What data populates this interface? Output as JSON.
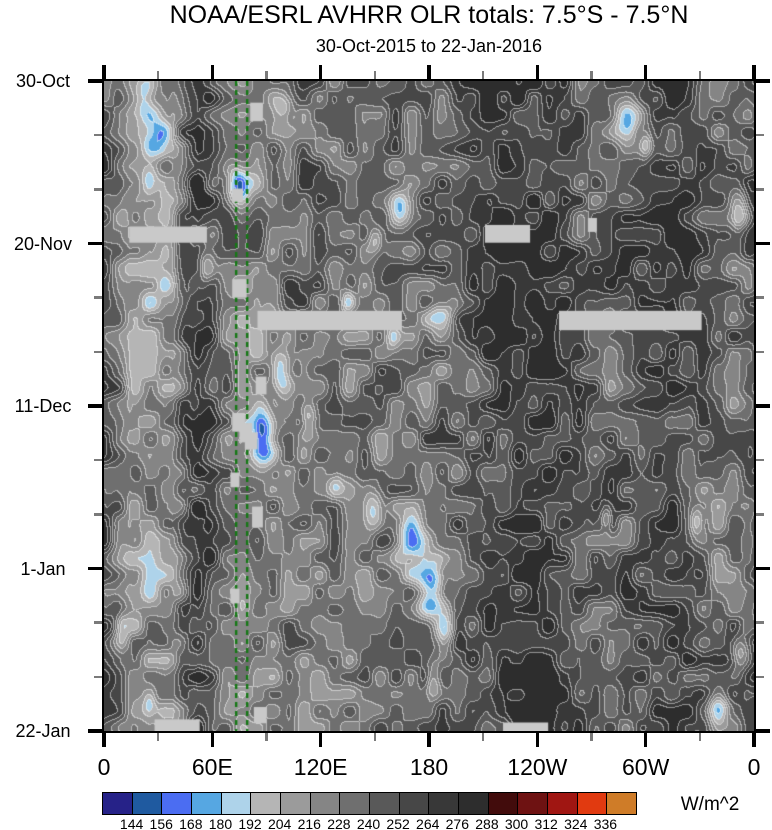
{
  "title": "NOAA/ESRL AVHRR OLR totals: 7.5°S - 7.5°N",
  "subtitle": "30-Oct-2015 to 22-Jan-2016",
  "chart_data": {
    "type": "heatmap",
    "title": "NOAA/ESRL AVHRR OLR totals: 7.5°S - 7.5°N",
    "subtitle": "30-Oct-2015 to 22-Jan-2016",
    "description": "Time-longitude (Hovmoller) filled-contour plot of outgoing longwave radiation averaged 7.5S-7.5N; time increases downward from 30-Oct-2015 to 22-Jan-2016; longitude spans 0E eastward around the globe back to 0.",
    "x_axis": {
      "range_deg": [
        0,
        360
      ],
      "major_ticks": [
        {
          "deg": 0,
          "label": "0"
        },
        {
          "deg": 60,
          "label": "60E"
        },
        {
          "deg": 120,
          "label": "120E"
        },
        {
          "deg": 180,
          "label": "180"
        },
        {
          "deg": 240,
          "label": "120W"
        },
        {
          "deg": 300,
          "label": "60W"
        },
        {
          "deg": 360,
          "label": "0"
        }
      ],
      "minor_step_deg": 30
    },
    "y_axis": {
      "range_days": [
        0,
        84
      ],
      "major_ticks": [
        {
          "day": 0,
          "label": "30-Oct"
        },
        {
          "day": 21,
          "label": "20-Nov"
        },
        {
          "day": 42,
          "label": "11-Dec"
        },
        {
          "day": 63,
          "label": "1-Jan"
        },
        {
          "day": 84,
          "label": "22-Jan"
        }
      ],
      "minor_step_days": 7
    },
    "colorbar": {
      "unit": "W/m^2",
      "levels": [
        144,
        156,
        168,
        180,
        192,
        204,
        216,
        228,
        240,
        252,
        264,
        276,
        288,
        300,
        312,
        324,
        336
      ],
      "colors": [
        "#262288",
        "#1f5aa0",
        "#4b6df2",
        "#56a7e2",
        "#aed3ea",
        "#b5b5b5",
        "#9b9b9b",
        "#858585",
        "#6f6f6f",
        "#595959",
        "#474747",
        "#383838",
        "#2d2d2d",
        "#420c0c",
        "#6e1212",
        "#a01612",
        "#e13a10",
        "#cf7c28"
      ]
    },
    "reference_lines": {
      "style": "dashed",
      "color": "#157815",
      "lons": [
        73.2,
        79.3
      ]
    },
    "missing_data": {
      "color": "#c9c9c9",
      "bars": [
        {
          "lon": [
            14,
            57
          ],
          "day": [
            18.8,
            20.9
          ]
        },
        {
          "lon": [
            211,
            236
          ],
          "day": [
            18.6,
            20.9
          ]
        },
        {
          "lon": [
            85,
            165
          ],
          "day": [
            29.7,
            32.2
          ]
        },
        {
          "lon": [
            252,
            331
          ],
          "day": [
            29.7,
            32.2
          ]
        },
        {
          "lon": [
            28,
            53
          ],
          "day": [
            82.5,
            84
          ]
        },
        {
          "lon": [
            221,
            246
          ],
          "day": [
            82.9,
            84
          ]
        },
        {
          "lon": [
            81,
            88
          ],
          "day": [
            2.8,
            5.2
          ]
        },
        {
          "lon": [
            71,
            77
          ],
          "day": [
            13.9,
            15.6
          ]
        },
        {
          "lon": [
            71,
            79
          ],
          "day": [
            25.6,
            28.0
          ]
        },
        {
          "lon": [
            84,
            90
          ],
          "day": [
            38.2,
            40.5
          ]
        },
        {
          "lon": [
            71,
            78
          ],
          "day": [
            42.9,
            45.3
          ]
        },
        {
          "lon": [
            75,
            82
          ],
          "day": [
            44.2,
            46.7
          ]
        },
        {
          "lon": [
            78,
            85
          ],
          "day": [
            45.4,
            47.6
          ]
        },
        {
          "lon": [
            70,
            75
          ],
          "day": [
            50.6,
            52.5
          ]
        },
        {
          "lon": [
            82,
            88
          ],
          "day": [
            55.0,
            57.7
          ]
        },
        {
          "lon": [
            70,
            75
          ],
          "day": [
            65.6,
            67.5
          ]
        },
        {
          "lon": [
            83,
            90
          ],
          "day": [
            80.9,
            83.0
          ]
        },
        {
          "lon": [
            268,
            273
          ],
          "day": [
            17.7,
            19.5
          ]
        }
      ]
    },
    "base_olr_profile": {
      "lons": [
        0,
        8,
        14,
        25,
        38,
        46,
        52,
        58,
        66,
        75,
        85,
        95,
        108,
        120,
        132,
        145,
        158,
        170,
        182,
        194,
        205,
        215,
        228,
        242,
        256,
        268,
        280,
        292,
        304,
        316,
        328,
        340,
        350,
        360
      ],
      "values": [
        256,
        236,
        216,
        213,
        221,
        258,
        274,
        264,
        240,
        229,
        227,
        233,
        241,
        237,
        235,
        234,
        237,
        239,
        241,
        247,
        257,
        269,
        275,
        277,
        270,
        250,
        246,
        252,
        262,
        268,
        256,
        238,
        242,
        256
      ]
    },
    "noise": {
      "octaves": [
        {
          "lon_scale": 8.5,
          "day_scale": 2.2,
          "amp": 50,
          "seed": 7
        },
        {
          "lon_scale": 26,
          "day_scale": 6.5,
          "amp": 28,
          "seed": 13
        }
      ],
      "value_clamp": [
        141,
        287
      ]
    },
    "convective_features": [
      {
        "lon": 22,
        "day": 2,
        "lon_r": 7,
        "day_r": 2.5,
        "drop": 48
      },
      {
        "lon": 28,
        "day": 7,
        "lon_r": 8,
        "day_r": 3,
        "drop": 52
      },
      {
        "lon": 100,
        "day": 3.5,
        "lon_r": 6,
        "day_r": 2.5,
        "drop": 55
      },
      {
        "lon": 290,
        "day": 5,
        "lon_r": 9,
        "day_r": 3.5,
        "drop": 70
      },
      {
        "lon": 74,
        "day": 13.5,
        "lon_r": 7,
        "day_r": 2.5,
        "drop": 72
      },
      {
        "lon": 25,
        "day": 13,
        "lon_r": 5,
        "day_r": 2,
        "drop": 42
      },
      {
        "lon": 164,
        "day": 16.5,
        "lon_r": 6,
        "day_r": 2.5,
        "drop": 55
      },
      {
        "lon": 352,
        "day": 17,
        "lon_r": 5,
        "day_r": 3,
        "drop": 50
      },
      {
        "lon": 57,
        "day": 24,
        "lon_r": 4.5,
        "day_r": 2.5,
        "drop": 45
      },
      {
        "lon": 150,
        "day": 20.5,
        "lon_r": 4,
        "day_r": 1.8,
        "drop": 40
      },
      {
        "lon": 187,
        "day": 30,
        "lon_r": 8,
        "day_r": 2.5,
        "drop": 58
      },
      {
        "lon": 160,
        "day": 33,
        "lon_r": 5,
        "day_r": 2,
        "drop": 45
      },
      {
        "lon": 97,
        "day": 37.5,
        "lon_r": 6,
        "day_r": 3,
        "drop": 60
      },
      {
        "lon": 113,
        "day": 43.5,
        "lon_r": 4.5,
        "day_r": 2.5,
        "drop": 50
      },
      {
        "lon": 88,
        "day": 46,
        "lon_r": 7,
        "day_r": 4,
        "drop": 78
      },
      {
        "lon": 128,
        "day": 52,
        "lon_r": 5,
        "day_r": 2.5,
        "drop": 48
      },
      {
        "lon": 150,
        "day": 55.5,
        "lon_r": 6,
        "day_r": 3,
        "drop": 55
      },
      {
        "lon": 170,
        "day": 59.5,
        "lon_r": 8,
        "day_r": 4,
        "drop": 82
      },
      {
        "lon": 181,
        "day": 65.5,
        "lon_r": 8,
        "day_r": 4,
        "drop": 85
      },
      {
        "lon": 189,
        "day": 71,
        "lon_r": 5.5,
        "day_r": 3,
        "drop": 55
      },
      {
        "lon": 182,
        "day": 77.5,
        "lon_r": 4.5,
        "day_r": 2.5,
        "drop": 50
      },
      {
        "lon": 278,
        "day": 56.5,
        "lon_r": 3,
        "day_r": 1.8,
        "drop": 42
      },
      {
        "lon": 328,
        "day": 57,
        "lon_r": 4,
        "day_r": 2,
        "drop": 48
      },
      {
        "lon": 10,
        "day": 70.5,
        "lon_r": 4,
        "day_r": 2,
        "drop": 42
      },
      {
        "lon": 25,
        "day": 80,
        "lon_r": 4,
        "day_r": 2,
        "drop": 40
      },
      {
        "lon": 352,
        "day": 74,
        "lon_r": 5,
        "day_r": 2.5,
        "drop": 52
      },
      {
        "lon": 340,
        "day": 81,
        "lon_r": 6,
        "day_r": 2.5,
        "drop": 52
      },
      {
        "lon": 300,
        "day": 8,
        "lon_r": 3.5,
        "day_r": 2,
        "drop": 40
      },
      {
        "lon": 135,
        "day": 28.5,
        "lon_r": 4,
        "day_r": 2,
        "drop": 45
      }
    ]
  }
}
